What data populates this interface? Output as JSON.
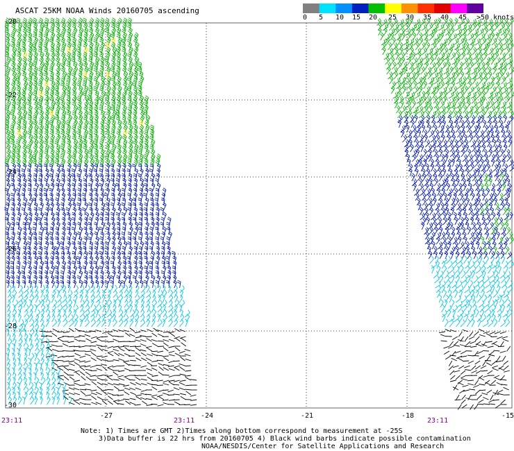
{
  "title": "ASCAT 25KM NOAA Winds 20160705 ascending",
  "colorbar": {
    "labels": [
      "0",
      "5",
      "10",
      "15",
      "20",
      "25",
      "30",
      "35",
      "40",
      "45",
      ">50 knots"
    ],
    "colors": [
      "#808080",
      "#00e0ff",
      "#0090ff",
      "#0020c0",
      "#00c000",
      "#ffff00",
      "#ff9000",
      "#ff3000",
      "#e00000",
      "#ff00ff",
      "#6000a0"
    ]
  },
  "map": {
    "lat_labels": [
      "-20",
      "-22",
      "-24",
      "-26",
      "-28",
      "-30"
    ],
    "lon_labels": [
      "-27",
      "-24",
      "-21",
      "-18",
      "-15"
    ],
    "time_labels": [
      "23:11",
      "23:11",
      "23:11"
    ],
    "swath_colors": {
      "north": "#00b000",
      "mid": "#0018b0",
      "south": "#00c8e0",
      "contaminated": "#000000",
      "high": "#f0e000"
    }
  },
  "notes": {
    "line1": "Note: 1) Times are GMT 2)Times along bottom correspond to measurement at -25S",
    "line2": "3)Data buffer is 22 hrs from 20160705 4) Black wind barbs indicate possible contamination",
    "line3": "NOAA/NESDIS/Center for Satellite Applications and Research"
  }
}
